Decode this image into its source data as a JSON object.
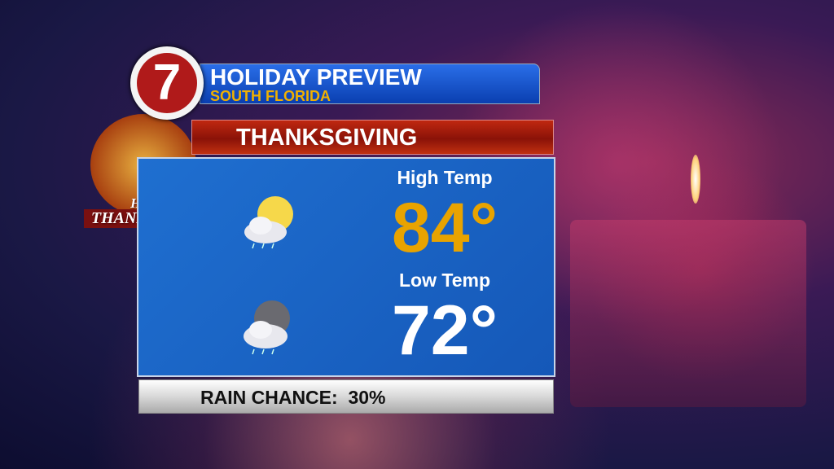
{
  "header": {
    "logo_text": "7",
    "title": "HOLIDAY PREVIEW",
    "subtitle": "SOUTH FLORIDA"
  },
  "day_label": "THANKSGIVING",
  "badge": {
    "line1": "HAPPY",
    "line2": "THANKSGIVING"
  },
  "forecast": {
    "high": {
      "label": "High Temp",
      "value": "84°",
      "icon": "partly-sunny-showers-icon",
      "color": "#e8a300"
    },
    "low": {
      "label": "Low Temp",
      "value": "72°",
      "icon": "partly-cloudy-night-showers-icon",
      "color": "#ffffff"
    }
  },
  "rain": {
    "text": "RAIN CHANCE:  30%"
  }
}
